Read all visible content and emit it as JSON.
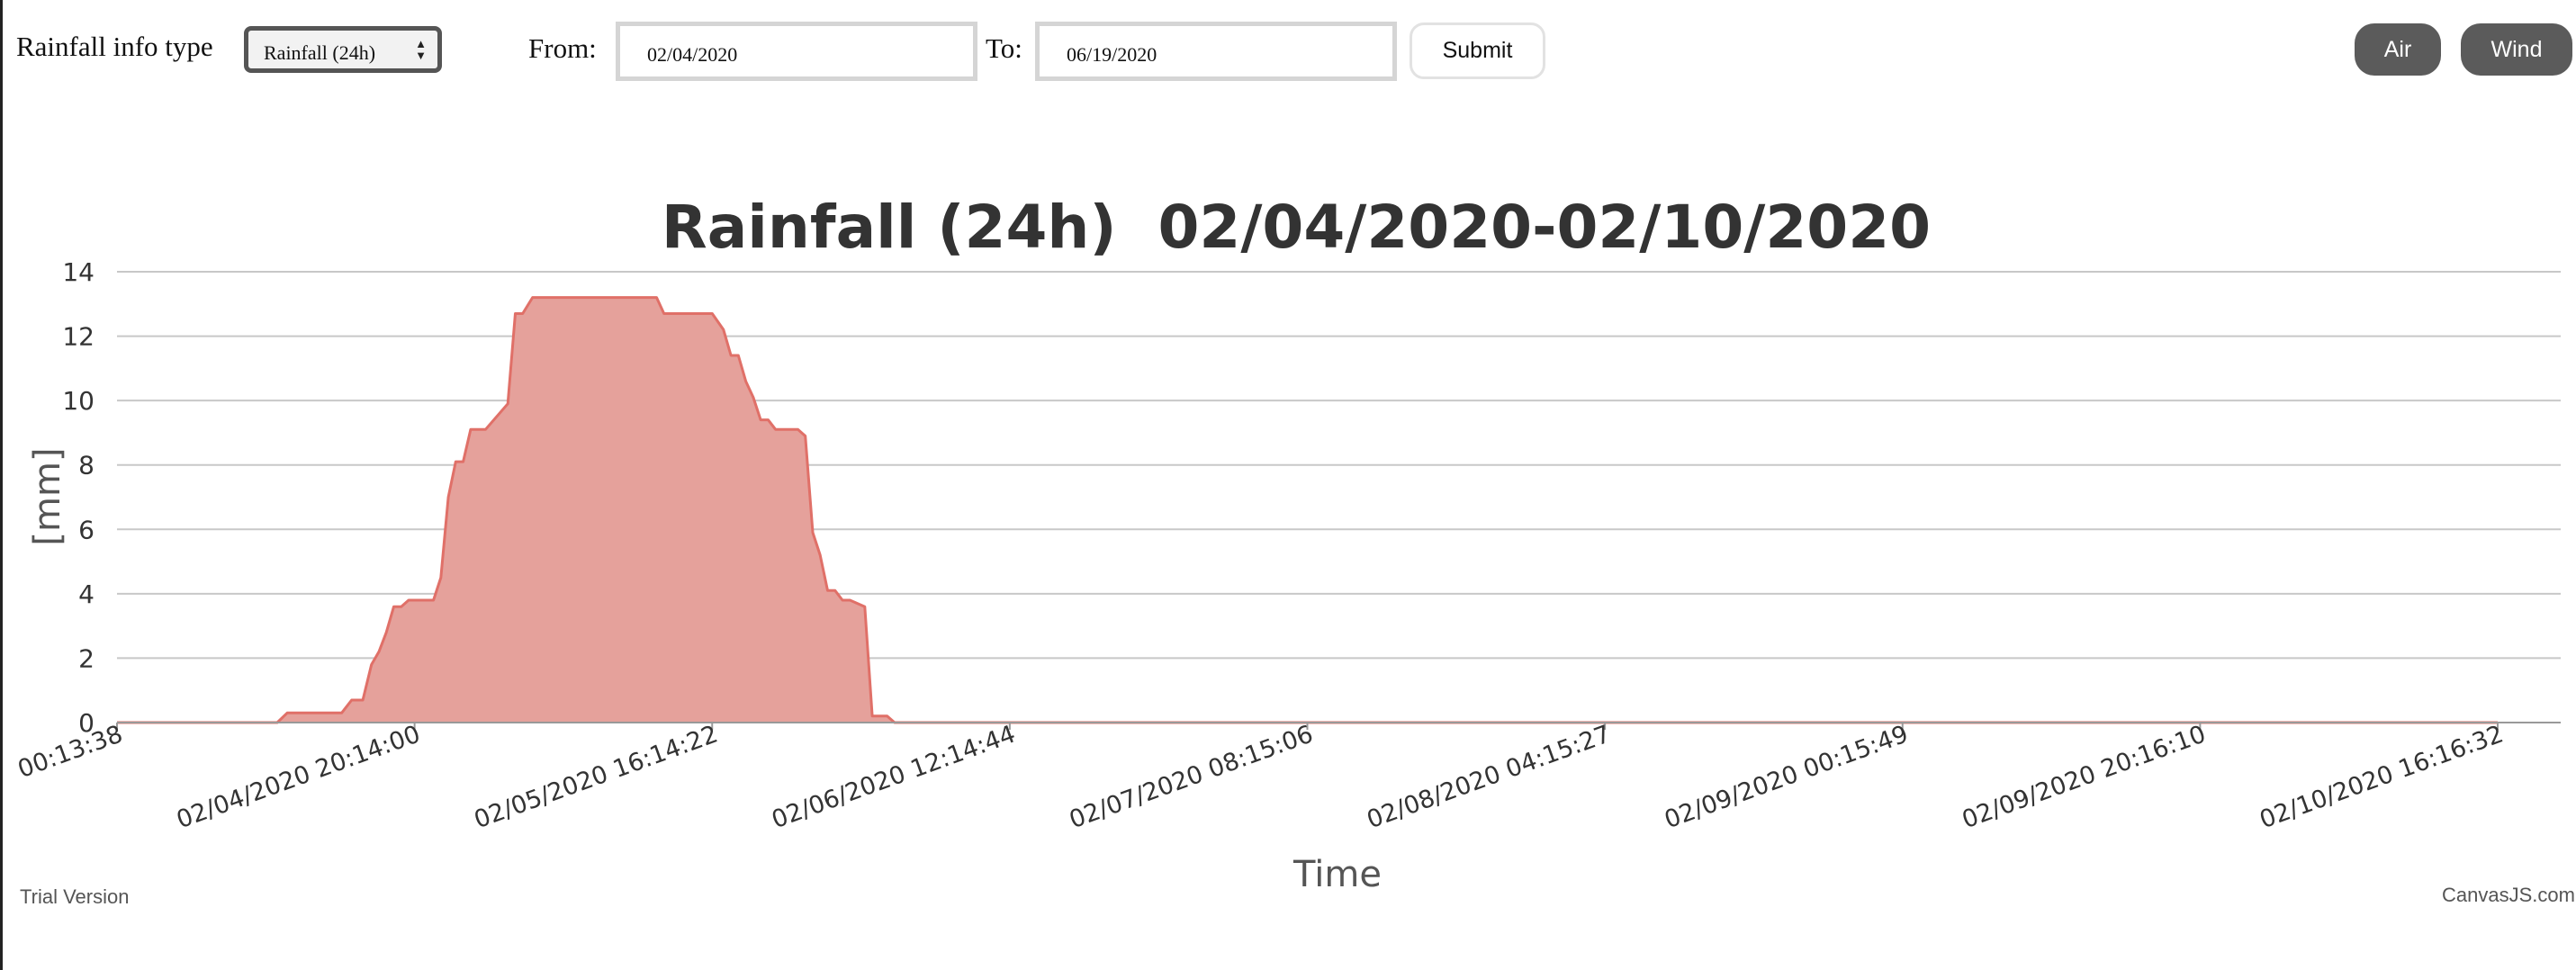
{
  "controls": {
    "info_type_label": "Rainfall info type",
    "info_type_selected": "Rainfall (24h)",
    "from_label": "From:",
    "from_value": "02/04/2020",
    "to_label": "To:",
    "to_value": "06/19/2020",
    "submit_label": "Submit",
    "air_label": "Air",
    "wind_label": "Wind"
  },
  "colors": {
    "area_fill": "#e5a19b",
    "area_line": "#e07068",
    "gridline": "#c8c8c8",
    "pill_bg": "#5b5b5b"
  },
  "chart_data": {
    "type": "area",
    "title": "Rainfall (24h)  02/04/2020-02/10/2020",
    "xlabel": "Time",
    "ylabel": "[mm]",
    "ylim": [
      0,
      14
    ],
    "yticks": [
      0,
      2,
      4,
      6,
      8,
      10,
      12,
      14
    ],
    "xlim": [
      "02/04/2020 00:13:38",
      "02/10/2020 16:16:32"
    ],
    "xtick_labels": [
      "00:13:38",
      "02/04/2020 20:14:00",
      "02/05/2020 16:14:22",
      "02/06/2020 12:14:44",
      "02/07/2020 08:15:06",
      "02/08/2020 04:15:27",
      "02/09/2020 00:15:49",
      "02/09/2020 20:16:10",
      "02/10/2020 16:16:32"
    ],
    "grid": true,
    "legend": "none",
    "series": [
      {
        "x": [
          "02/04/2020 00:13:38",
          "02/04/2020 11:00:00",
          "02/04/2020 11:40:00",
          "02/04/2020 15:20:00",
          "02/04/2020 16:00:00",
          "02/04/2020 16:45:00",
          "02/04/2020 17:20:00",
          "02/04/2020 17:50:00",
          "02/04/2020 18:20:00",
          "02/04/2020 18:50:00",
          "02/04/2020 19:20:00",
          "02/04/2020 19:50:00",
          "02/04/2020 20:14:00",
          "02/04/2020 21:30:00",
          "02/04/2020 22:00:00",
          "02/04/2020 22:30:00",
          "02/04/2020 23:00:00",
          "02/04/2020 23:30:00",
          "02/05/2020 00:00:00",
          "02/05/2020 00:30:00",
          "02/05/2020 01:00:00",
          "02/05/2020 02:30:00",
          "02/05/2020 03:00:00",
          "02/05/2020 03:30:00",
          "02/05/2020 04:10:00",
          "02/05/2020 04:40:00",
          "02/05/2020 05:10:00",
          "02/05/2020 12:30:00",
          "02/05/2020 13:00:00",
          "02/05/2020 13:30:00",
          "02/05/2020 16:14:22",
          "02/05/2020 17:00:00",
          "02/05/2020 17:30:00",
          "02/05/2020 18:00:00",
          "02/05/2020 18:30:00",
          "02/05/2020 19:00:00",
          "02/05/2020 19:30:00",
          "02/05/2020 20:00:00",
          "02/05/2020 20:30:00",
          "02/05/2020 21:00:00",
          "02/05/2020 22:00:00",
          "02/05/2020 22:30:00",
          "02/05/2020 23:00:00",
          "02/05/2020 23:30:00",
          "02/06/2020 00:00:00",
          "02/06/2020 00:30:00",
          "02/06/2020 01:00:00",
          "02/06/2020 01:30:00",
          "02/06/2020 02:30:00",
          "02/06/2020 03:00:00",
          "02/06/2020 04:00:00",
          "02/06/2020 04:30:00",
          "02/06/2020 05:00:00",
          "02/10/2020 16:16:32"
        ],
        "values": [
          0,
          0,
          0.3,
          0.3,
          0.7,
          0.7,
          1.8,
          2.2,
          2.8,
          3.6,
          3.6,
          3.8,
          3.8,
          3.8,
          4.5,
          7.0,
          8.1,
          8.1,
          9.1,
          9.1,
          9.1,
          9.9,
          12.7,
          12.7,
          13.2,
          13.2,
          13.2,
          13.2,
          12.7,
          12.7,
          12.7,
          12.2,
          11.4,
          11.4,
          10.6,
          10.1,
          9.4,
          9.4,
          9.1,
          9.1,
          9.1,
          8.9,
          5.9,
          5.2,
          4.1,
          4.1,
          3.8,
          3.8,
          3.6,
          0.2,
          0.2,
          0,
          0,
          0
        ]
      }
    ]
  },
  "footer": {
    "trial_label": "Trial Version",
    "credit_label": "CanvasJS.com"
  }
}
